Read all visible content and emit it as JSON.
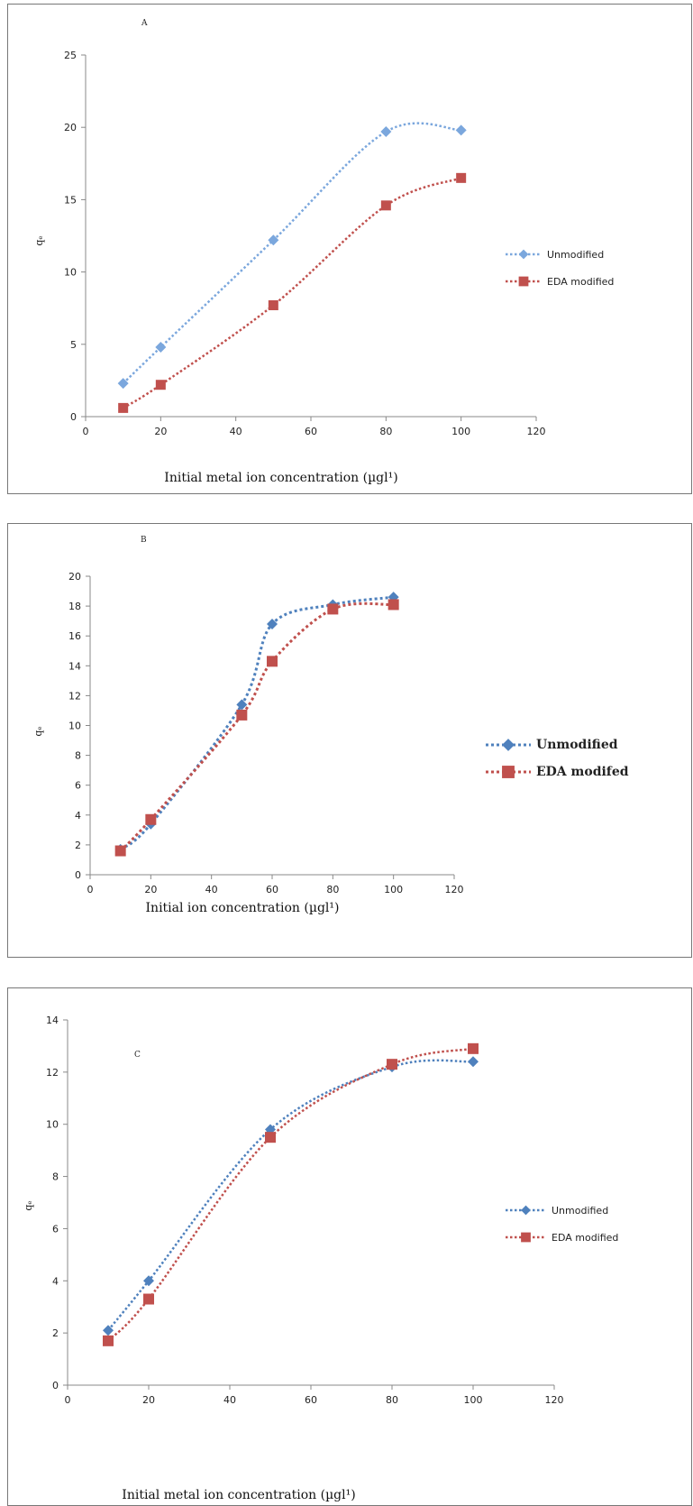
{
  "chart_data": [
    {
      "type": "line",
      "panel_label": "A",
      "xlabel": "Initial metal ion concentration (µgl¹)",
      "ylabel": "qₑ",
      "xlim": [
        0,
        120
      ],
      "ylim": [
        0,
        25
      ],
      "xticks": [
        0,
        20,
        40,
        60,
        80,
        100,
        120
      ],
      "yticks": [
        0,
        5,
        10,
        15,
        20,
        25
      ],
      "grid": false,
      "legend_position": "right",
      "series": [
        {
          "name": "Unmodified",
          "color": "#7ba7dd",
          "marker": "diamond",
          "x": [
            10,
            20,
            50,
            80,
            100
          ],
          "y": [
            2.3,
            4.8,
            12.2,
            19.7,
            19.8
          ]
        },
        {
          "name": "EDA modified",
          "color": "#c0504d",
          "marker": "square",
          "x": [
            10,
            20,
            50,
            80,
            100
          ],
          "y": [
            0.6,
            2.2,
            7.7,
            14.6,
            16.5
          ]
        }
      ]
    },
    {
      "type": "line",
      "panel_label": "B",
      "xlabel": "Initial ion concentration (µgl¹)",
      "ylabel": "qₑ",
      "xlim": [
        0,
        120
      ],
      "ylim": [
        0,
        20
      ],
      "xticks": [
        0,
        20,
        40,
        60,
        80,
        100,
        120
      ],
      "yticks": [
        0,
        2,
        4,
        6,
        8,
        10,
        12,
        14,
        16,
        18,
        20
      ],
      "grid": false,
      "legend_position": "right",
      "series": [
        {
          "name": "Unmodified",
          "color": "#4f81bd",
          "marker": "diamond",
          "x": [
            10,
            20,
            50,
            60,
            80,
            100
          ],
          "y": [
            1.7,
            3.4,
            11.4,
            16.8,
            18.1,
            18.6
          ]
        },
        {
          "name": "EDA modifed",
          "color": "#c0504d",
          "marker": "square",
          "x": [
            10,
            20,
            50,
            60,
            80,
            100
          ],
          "y": [
            1.6,
            3.7,
            10.7,
            14.3,
            17.8,
            18.1
          ]
        }
      ]
    },
    {
      "type": "line",
      "panel_label": "C",
      "xlabel": "Initial metal ion concentration (µgl¹)",
      "ylabel": "qₑ",
      "xlim": [
        0,
        120
      ],
      "ylim": [
        0,
        14
      ],
      "xticks": [
        0,
        20,
        40,
        60,
        80,
        100,
        120
      ],
      "yticks": [
        0,
        2,
        4,
        6,
        8,
        10,
        12,
        14
      ],
      "grid": false,
      "legend_position": "right",
      "series": [
        {
          "name": "Unmodified",
          "color": "#4f81bd",
          "marker": "diamond",
          "x": [
            10,
            20,
            50,
            80,
            100
          ],
          "y": [
            2.1,
            4.0,
            9.8,
            12.2,
            12.4
          ]
        },
        {
          "name": "EDA modified",
          "color": "#c0504d",
          "marker": "square",
          "x": [
            10,
            20,
            50,
            80,
            100
          ],
          "y": [
            1.7,
            3.3,
            9.5,
            12.3,
            12.9
          ]
        }
      ]
    }
  ]
}
